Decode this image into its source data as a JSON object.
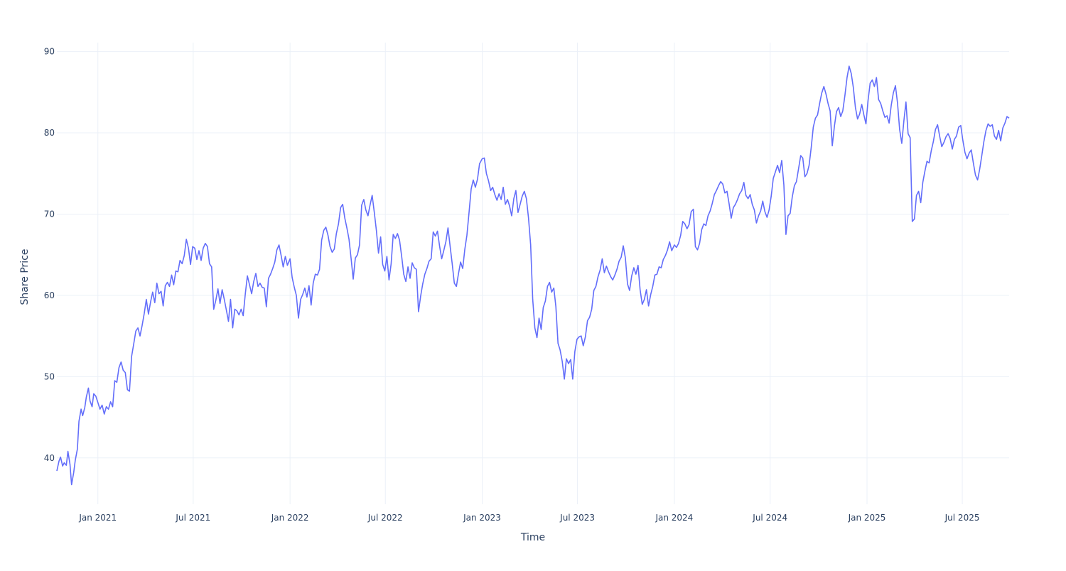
{
  "chart_data": {
    "type": "line",
    "title": "",
    "xlabel": "Time",
    "ylabel": "Share Price",
    "xlim": [
      "2020-10-15",
      "2025-09-28"
    ],
    "ylim": [
      34.3,
      91.1
    ],
    "grid": true,
    "legend": "none",
    "x_tick_labels": [
      {
        "date": "2021-01-01",
        "label": "Jan 2021"
      },
      {
        "date": "2021-07-01",
        "label": "Jul 2021"
      },
      {
        "date": "2022-01-01",
        "label": "Jan 2022"
      },
      {
        "date": "2022-07-01",
        "label": "Jul 2022"
      },
      {
        "date": "2023-01-01",
        "label": "Jan 2023"
      },
      {
        "date": "2023-07-01",
        "label": "Jul 2023"
      },
      {
        "date": "2024-01-01",
        "label": "Jan 2024"
      },
      {
        "date": "2024-07-01",
        "label": "Jul 2024"
      },
      {
        "date": "2025-01-01",
        "label": "Jan 2025"
      },
      {
        "date": "2025-07-01",
        "label": "Jul 2025"
      }
    ],
    "y_ticks": [
      40,
      50,
      60,
      70,
      80,
      90
    ],
    "colors": {
      "line": "#636efa",
      "grid": "#ebf0f8",
      "text": "#2a3f5f"
    },
    "series": [
      {
        "x": [
          "2020-10-15",
          "2020-10-19",
          "2020-10-22",
          "2020-10-26",
          "2020-10-29",
          "2020-11-02",
          "2020-11-05",
          "2020-11-09",
          "2020-11-12",
          "2020-11-16",
          "2020-11-19",
          "2020-11-23",
          "2020-11-26",
          "2020-11-30",
          "2020-12-03",
          "2020-12-07",
          "2020-12-10",
          "2020-12-14",
          "2020-12-17",
          "2020-12-21",
          "2020-12-24",
          "2020-12-28",
          "2021-01-01",
          "2021-01-05",
          "2021-01-09",
          "2021-01-13",
          "2021-01-17",
          "2021-01-21",
          "2021-01-25",
          "2021-01-29",
          "2021-02-02",
          "2021-02-06",
          "2021-02-10",
          "2021-02-14",
          "2021-02-18",
          "2021-02-22",
          "2021-02-26",
          "2021-03-02",
          "2021-03-06",
          "2021-03-10",
          "2021-03-14",
          "2021-03-18",
          "2021-03-22",
          "2021-03-26",
          "2021-03-30",
          "2021-04-03",
          "2021-04-07",
          "2021-04-11",
          "2021-04-15",
          "2021-04-19",
          "2021-04-23",
          "2021-04-27",
          "2021-05-01",
          "2021-05-05",
          "2021-05-09",
          "2021-05-13",
          "2021-05-17",
          "2021-05-21",
          "2021-05-25",
          "2021-05-29",
          "2021-06-02",
          "2021-06-06",
          "2021-06-10",
          "2021-06-14",
          "2021-06-18",
          "2021-06-22",
          "2021-06-26",
          "2021-06-30",
          "2021-07-04",
          "2021-07-08",
          "2021-07-12",
          "2021-07-16",
          "2021-07-20",
          "2021-07-24",
          "2021-07-28",
          "2021-08-01",
          "2021-08-05",
          "2021-08-09",
          "2021-08-13",
          "2021-08-17",
          "2021-08-21",
          "2021-08-25",
          "2021-08-29",
          "2021-09-02",
          "2021-09-06",
          "2021-09-10",
          "2021-09-14",
          "2021-09-18",
          "2021-09-22",
          "2021-09-26",
          "2021-09-30",
          "2021-10-04",
          "2021-10-08",
          "2021-10-12",
          "2021-10-16",
          "2021-10-20",
          "2021-10-24",
          "2021-10-28",
          "2021-11-01",
          "2021-11-05",
          "2021-11-09",
          "2021-11-13",
          "2021-11-17",
          "2021-11-21",
          "2021-11-25",
          "2021-11-29",
          "2021-12-03",
          "2021-12-07",
          "2021-12-11",
          "2021-12-15",
          "2021-12-19",
          "2021-12-23",
          "2021-12-27",
          "2022-01-01",
          "2022-01-05",
          "2022-01-09",
          "2022-01-13",
          "2022-01-17",
          "2022-01-21",
          "2022-01-25",
          "2022-01-29",
          "2022-02-02",
          "2022-02-06",
          "2022-02-10",
          "2022-02-14",
          "2022-02-18",
          "2022-02-22",
          "2022-02-26",
          "2022-03-02",
          "2022-03-06",
          "2022-03-10",
          "2022-03-14",
          "2022-03-18",
          "2022-03-22",
          "2022-03-26",
          "2022-03-30",
          "2022-04-03",
          "2022-04-07",
          "2022-04-11",
          "2022-04-15",
          "2022-04-19",
          "2022-04-23",
          "2022-04-27",
          "2022-05-01",
          "2022-05-05",
          "2022-05-09",
          "2022-05-13",
          "2022-05-17",
          "2022-05-21",
          "2022-05-25",
          "2022-05-29",
          "2022-06-02",
          "2022-06-06",
          "2022-06-10",
          "2022-06-14",
          "2022-06-18",
          "2022-06-22",
          "2022-06-26",
          "2022-06-30",
          "2022-07-04",
          "2022-07-08",
          "2022-07-12",
          "2022-07-16",
          "2022-07-20",
          "2022-07-24",
          "2022-07-28",
          "2022-08-01",
          "2022-08-05",
          "2022-08-09",
          "2022-08-13",
          "2022-08-17",
          "2022-08-21",
          "2022-08-25",
          "2022-08-29",
          "2022-09-02",
          "2022-09-06",
          "2022-09-10",
          "2022-09-14",
          "2022-09-18",
          "2022-09-22",
          "2022-09-26",
          "2022-09-30",
          "2022-10-04",
          "2022-10-08",
          "2022-10-12",
          "2022-10-16",
          "2022-10-20",
          "2022-10-24",
          "2022-10-28",
          "2022-11-01",
          "2022-11-05",
          "2022-11-09",
          "2022-11-13",
          "2022-11-17",
          "2022-11-21",
          "2022-11-25",
          "2022-11-29",
          "2022-12-03",
          "2022-12-07",
          "2022-12-11",
          "2022-12-15",
          "2022-12-19",
          "2022-12-23",
          "2022-12-27",
          "2023-01-01",
          "2023-01-05",
          "2023-01-09",
          "2023-01-13",
          "2023-01-17",
          "2023-01-21",
          "2023-01-25",
          "2023-01-29",
          "2023-02-02",
          "2023-02-06",
          "2023-02-10",
          "2023-02-14",
          "2023-02-18",
          "2023-02-22",
          "2023-02-26",
          "2023-03-02",
          "2023-03-06",
          "2023-03-10",
          "2023-03-14",
          "2023-03-18",
          "2023-03-22",
          "2023-03-26",
          "2023-03-30",
          "2023-04-03",
          "2023-04-07",
          "2023-04-11",
          "2023-04-15",
          "2023-04-19",
          "2023-04-23",
          "2023-04-27",
          "2023-05-01",
          "2023-05-05",
          "2023-05-09",
          "2023-05-13",
          "2023-05-17",
          "2023-05-21",
          "2023-05-25",
          "2023-05-29",
          "2023-06-02",
          "2023-06-06",
          "2023-06-10",
          "2023-06-14",
          "2023-06-18",
          "2023-06-22",
          "2023-06-26",
          "2023-06-30",
          "2023-07-04",
          "2023-07-08",
          "2023-07-12",
          "2023-07-16",
          "2023-07-20",
          "2023-07-24",
          "2023-07-28",
          "2023-08-01",
          "2023-08-05",
          "2023-08-09",
          "2023-08-13",
          "2023-08-17",
          "2023-08-21",
          "2023-08-25",
          "2023-08-29",
          "2023-09-02",
          "2023-09-06",
          "2023-09-10",
          "2023-09-14",
          "2023-09-18",
          "2023-09-22",
          "2023-09-26",
          "2023-09-30",
          "2023-10-04",
          "2023-10-08",
          "2023-10-12",
          "2023-10-16",
          "2023-10-20",
          "2023-10-24",
          "2023-10-28",
          "2023-11-01",
          "2023-11-05",
          "2023-11-09",
          "2023-11-13",
          "2023-11-17",
          "2023-11-21",
          "2023-11-25",
          "2023-11-29",
          "2023-12-03",
          "2023-12-07",
          "2023-12-11",
          "2023-12-15",
          "2023-12-19",
          "2023-12-23",
          "2023-12-27",
          "2024-01-01",
          "2024-01-05",
          "2024-01-09",
          "2024-01-13",
          "2024-01-17",
          "2024-01-21",
          "2024-01-25",
          "2024-01-29",
          "2024-02-02",
          "2024-02-06",
          "2024-02-10",
          "2024-02-14",
          "2024-02-18",
          "2024-02-22",
          "2024-02-26",
          "2024-03-01",
          "2024-03-05",
          "2024-03-09",
          "2024-03-13",
          "2024-03-17",
          "2024-03-21",
          "2024-03-25",
          "2024-03-29",
          "2024-04-02",
          "2024-04-06",
          "2024-04-10",
          "2024-04-14",
          "2024-04-18",
          "2024-04-22",
          "2024-04-26",
          "2024-04-30",
          "2024-05-04",
          "2024-05-08",
          "2024-05-12",
          "2024-05-16",
          "2024-05-20",
          "2024-05-24",
          "2024-05-28",
          "2024-06-01",
          "2024-06-05",
          "2024-06-09",
          "2024-06-13",
          "2024-06-17",
          "2024-06-21",
          "2024-06-25",
          "2024-06-29",
          "2024-07-03",
          "2024-07-07",
          "2024-07-11",
          "2024-07-15",
          "2024-07-19",
          "2024-07-23",
          "2024-07-27",
          "2024-07-31",
          "2024-08-04",
          "2024-08-08",
          "2024-08-12",
          "2024-08-16",
          "2024-08-20",
          "2024-08-24",
          "2024-08-28",
          "2024-09-01",
          "2024-09-05",
          "2024-09-09",
          "2024-09-13",
          "2024-09-17",
          "2024-09-21",
          "2024-09-25",
          "2024-09-29",
          "2024-10-03",
          "2024-10-07",
          "2024-10-11",
          "2024-10-15",
          "2024-10-19",
          "2024-10-23",
          "2024-10-27",
          "2024-10-31",
          "2024-11-04",
          "2024-11-08",
          "2024-11-12",
          "2024-11-16",
          "2024-11-20",
          "2024-11-24",
          "2024-11-28",
          "2024-12-02",
          "2024-12-06",
          "2024-12-10",
          "2024-12-14",
          "2024-12-18",
          "2024-12-22",
          "2024-12-26",
          "2024-12-30",
          "2025-01-03",
          "2025-01-07",
          "2025-01-11",
          "2025-01-15",
          "2025-01-19",
          "2025-01-23",
          "2025-01-27",
          "2025-01-31",
          "2025-02-04",
          "2025-02-08",
          "2025-02-12",
          "2025-02-16",
          "2025-02-20",
          "2025-02-24",
          "2025-02-28",
          "2025-03-04",
          "2025-03-08",
          "2025-03-12",
          "2025-03-16",
          "2025-03-20",
          "2025-03-24",
          "2025-03-28",
          "2025-04-01",
          "2025-04-05",
          "2025-04-09",
          "2025-04-13",
          "2025-04-17",
          "2025-04-21",
          "2025-04-25",
          "2025-04-29",
          "2025-05-03",
          "2025-05-07",
          "2025-05-11",
          "2025-05-15",
          "2025-05-19",
          "2025-05-23",
          "2025-05-27",
          "2025-05-31",
          "2025-06-04",
          "2025-06-08",
          "2025-06-12",
          "2025-06-16",
          "2025-06-20",
          "2025-06-24",
          "2025-06-28",
          "2025-07-02",
          "2025-07-06",
          "2025-07-10",
          "2025-07-14",
          "2025-07-18",
          "2025-07-22",
          "2025-07-26",
          "2025-07-30",
          "2025-08-03",
          "2025-08-07",
          "2025-08-11",
          "2025-08-15",
          "2025-08-19",
          "2025-08-23",
          "2025-08-27",
          "2025-08-31",
          "2025-09-04",
          "2025-09-08",
          "2025-09-12",
          "2025-09-16",
          "2025-09-20",
          "2025-09-24",
          "2025-09-28"
        ],
        "y": [
          38.4,
          39.6,
          40.1,
          39.0,
          39.4,
          39.1,
          40.8,
          39.2,
          36.7,
          38.2,
          39.7,
          41.1,
          44.5,
          46.0,
          45.2,
          46.2,
          47.5,
          48.6,
          47.0,
          46.3,
          47.9,
          47.6,
          46.8,
          46.0,
          46.5,
          45.4,
          46.3,
          46.0,
          46.9,
          46.3,
          49.5,
          49.3,
          51.1,
          51.8,
          50.8,
          50.5,
          48.4,
          48.2,
          52.5,
          54.0,
          55.6,
          56.0,
          55.0,
          56.3,
          57.8,
          59.5,
          57.7,
          59.2,
          60.4,
          59.1,
          61.5,
          60.2,
          60.5,
          58.7,
          61.2,
          61.6,
          61.1,
          62.5,
          61.3,
          63.0,
          62.9,
          64.3,
          63.9,
          64.9,
          66.9,
          65.8,
          63.8,
          66.0,
          65.8,
          64.4,
          65.5,
          64.3,
          65.8,
          66.4,
          66.0,
          63.9,
          63.5,
          58.3,
          59.4,
          60.8,
          59.0,
          60.7,
          59.5,
          58.2,
          56.8,
          59.5,
          56.0,
          58.3,
          58.1,
          57.6,
          58.3,
          57.5,
          60.2,
          62.4,
          61.3,
          60.2,
          61.7,
          62.7,
          61.1,
          61.5,
          61.0,
          60.9,
          58.6,
          62.1,
          62.6,
          63.3,
          64.1,
          65.6,
          66.2,
          64.9,
          63.5,
          64.8,
          63.7,
          64.5,
          62.2,
          61.0,
          60.0,
          57.2,
          59.5,
          60.1,
          60.9,
          59.8,
          61.2,
          58.8,
          61.5,
          62.6,
          62.5,
          63.2,
          66.8,
          68.0,
          68.4,
          67.4,
          66.0,
          65.3,
          65.7,
          67.6,
          68.8,
          70.8,
          71.2,
          69.5,
          68.3,
          66.9,
          64.5,
          62.0,
          64.6,
          65.0,
          66.2,
          71.1,
          71.8,
          70.5,
          69.8,
          71.1,
          72.3,
          70.2,
          68.0,
          65.2,
          67.2,
          63.8,
          63.0,
          64.8,
          61.9,
          63.9,
          67.5,
          67.0,
          67.6,
          66.8,
          64.8,
          62.6,
          61.7,
          63.5,
          62.1,
          64.0,
          63.4,
          63.2,
          58.0,
          59.9,
          61.4,
          62.6,
          63.3,
          64.2,
          64.5,
          67.8,
          67.3,
          67.9,
          66.1,
          64.5,
          65.5,
          66.6,
          68.3,
          66.1,
          63.9,
          61.5,
          61.1,
          62.7,
          64.1,
          63.3,
          65.7,
          67.4,
          70.2,
          73.1,
          74.2,
          73.3,
          74.3,
          76.2,
          76.8,
          76.9,
          75.0,
          74.1,
          72.9,
          73.3,
          72.4,
          71.7,
          72.5,
          71.8,
          73.3,
          71.2,
          71.8,
          71.0,
          69.8,
          71.9,
          72.9,
          70.2,
          71.2,
          72.2,
          72.8,
          71.9,
          69.5,
          66.2,
          59.5,
          56.0,
          54.8,
          57.2,
          55.8,
          58.5,
          59.3,
          61.1,
          61.6,
          60.4,
          60.9,
          58.6,
          54.1,
          53.3,
          51.9,
          49.7,
          52.2,
          51.6,
          52.1,
          49.7,
          53.1,
          54.6,
          54.9,
          55.0,
          53.8,
          54.9,
          56.9,
          57.3,
          58.3,
          60.6,
          61.1,
          62.3,
          63.1,
          64.5,
          62.8,
          63.6,
          62.9,
          62.3,
          61.9,
          62.5,
          63.2,
          64.2,
          64.7,
          66.1,
          64.6,
          61.4,
          60.6,
          62.4,
          63.4,
          62.6,
          63.7,
          60.7,
          58.9,
          59.5,
          60.7,
          58.7,
          60.1,
          61.1,
          62.5,
          62.6,
          63.5,
          63.4,
          64.4,
          64.9,
          65.6,
          66.6,
          65.5,
          66.2,
          65.9,
          66.4,
          67.4,
          69.1,
          68.8,
          68.2,
          68.7,
          70.3,
          70.6,
          66.0,
          65.6,
          66.4,
          68.1,
          68.8,
          68.6,
          69.8,
          70.4,
          71.3,
          72.4,
          72.9,
          73.5,
          74.0,
          73.7,
          72.6,
          72.8,
          71.3,
          69.5,
          70.8,
          71.2,
          71.8,
          72.5,
          72.9,
          73.9,
          72.3,
          71.9,
          72.4,
          71.2,
          70.5,
          68.9,
          69.8,
          70.4,
          71.6,
          70.3,
          69.6,
          70.5,
          72.2,
          74.4,
          75.2,
          76.0,
          75.1,
          76.6,
          73.6,
          67.5,
          69.8,
          70.1,
          72.1,
          73.5,
          74.0,
          75.6,
          77.2,
          76.9,
          74.6,
          75.0,
          76.0,
          78.2,
          80.7,
          81.8,
          82.2,
          83.6,
          84.9,
          85.7,
          84.8,
          83.6,
          82.7,
          78.4,
          80.8,
          82.6,
          83.1,
          82.0,
          82.7,
          84.6,
          86.8,
          88.2,
          87.3,
          85.6,
          83.1,
          81.7,
          82.3,
          83.5,
          82.2,
          81.1,
          84.0,
          86.1,
          86.5,
          85.7,
          86.8,
          84.1,
          83.6,
          82.7,
          81.9,
          82.1,
          81.2,
          83.4,
          84.9,
          85.8,
          83.6,
          80.4,
          78.7,
          81.5,
          83.8,
          79.9,
          79.4,
          69.1,
          69.4,
          72.3,
          72.8,
          71.4,
          73.9,
          75.3,
          76.5,
          76.3,
          77.8,
          78.9,
          80.4,
          81.0,
          79.6,
          78.3,
          78.8,
          79.5,
          79.9,
          79.3,
          78.0,
          79.2,
          79.6,
          80.7,
          80.9,
          79.1,
          77.6,
          76.8,
          77.5,
          77.9,
          76.3,
          74.8,
          74.2,
          75.5,
          77.2,
          78.9,
          80.3,
          81.1,
          80.8,
          81.0,
          79.6,
          79.2,
          80.3,
          79.0,
          80.6,
          81.2,
          82.0,
          81.8
        ]
      }
    ]
  }
}
